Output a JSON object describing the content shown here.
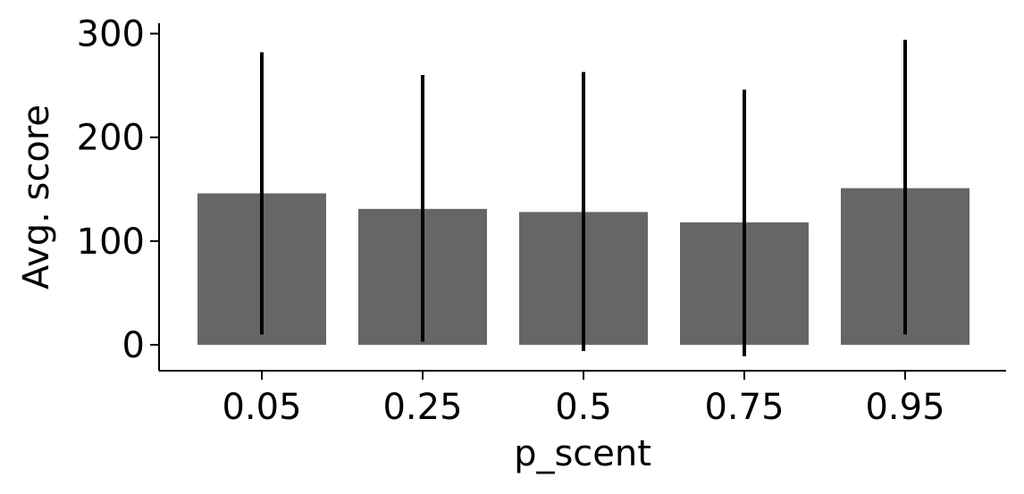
{
  "chart_data": {
    "type": "bar",
    "categories": [
      "0.05",
      "0.25",
      "0.5",
      "0.75",
      "0.95"
    ],
    "values": [
      146,
      131,
      128,
      118,
      151
    ],
    "error_low": [
      10,
      3,
      -6,
      -11,
      10
    ],
    "error_high": [
      282,
      260,
      263,
      246,
      294
    ],
    "title": "",
    "xlabel": "p_scent",
    "ylabel": "Avg. score",
    "ylim": [
      -25,
      310
    ],
    "yticks": [
      0,
      100,
      200,
      300
    ],
    "ytick_labels": [
      "0",
      "100",
      "200",
      "300"
    ],
    "bar_color": "#666666",
    "error_color": "#000000",
    "grid": false,
    "legend": "none"
  }
}
